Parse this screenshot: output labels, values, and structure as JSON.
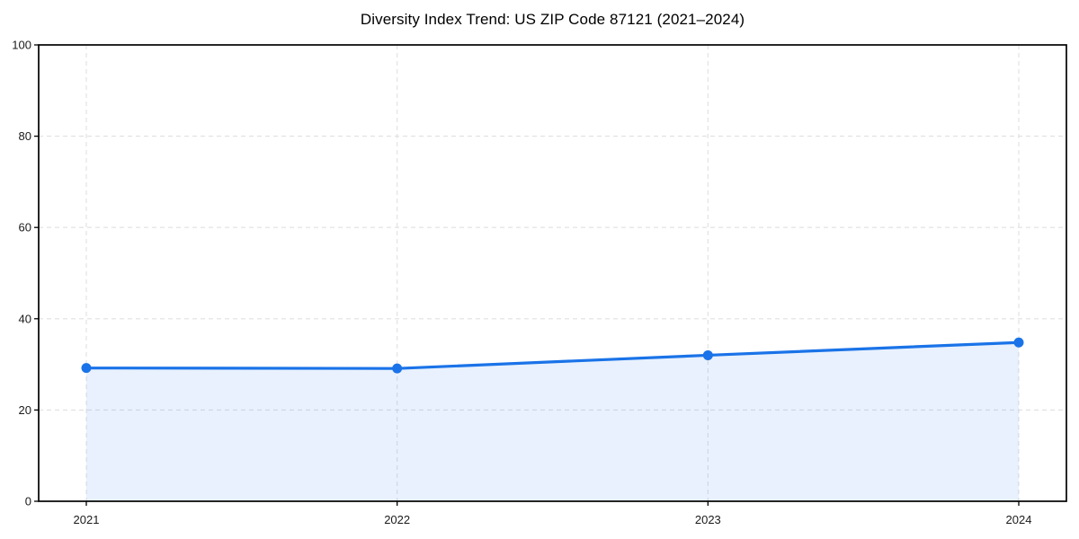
{
  "page": {
    "background": "#ffffff"
  },
  "chart_data": {
    "type": "line",
    "title": "Diversity Index Trend: US ZIP Code 87121 (2021–2024)",
    "x": [
      "2021",
      "2022",
      "2023",
      "2024"
    ],
    "series": [
      {
        "name": "Diversity Index",
        "values": [
          29.2,
          29.1,
          32.0,
          34.8
        ]
      }
    ],
    "xlabel": "",
    "ylabel": "",
    "ylim": [
      0,
      100
    ],
    "yticks": [
      0,
      20,
      40,
      60,
      80,
      100
    ],
    "grid": true,
    "grid_style": "dashed",
    "legend_position": "none",
    "area_fill": true,
    "marker": "circle",
    "colors": {
      "line": "#1a73e8",
      "area": "rgba(26,115,232,0.10)",
      "grid": "#e0e0e0",
      "axis": "#000000",
      "tick_text": "#1a1a1a"
    }
  }
}
